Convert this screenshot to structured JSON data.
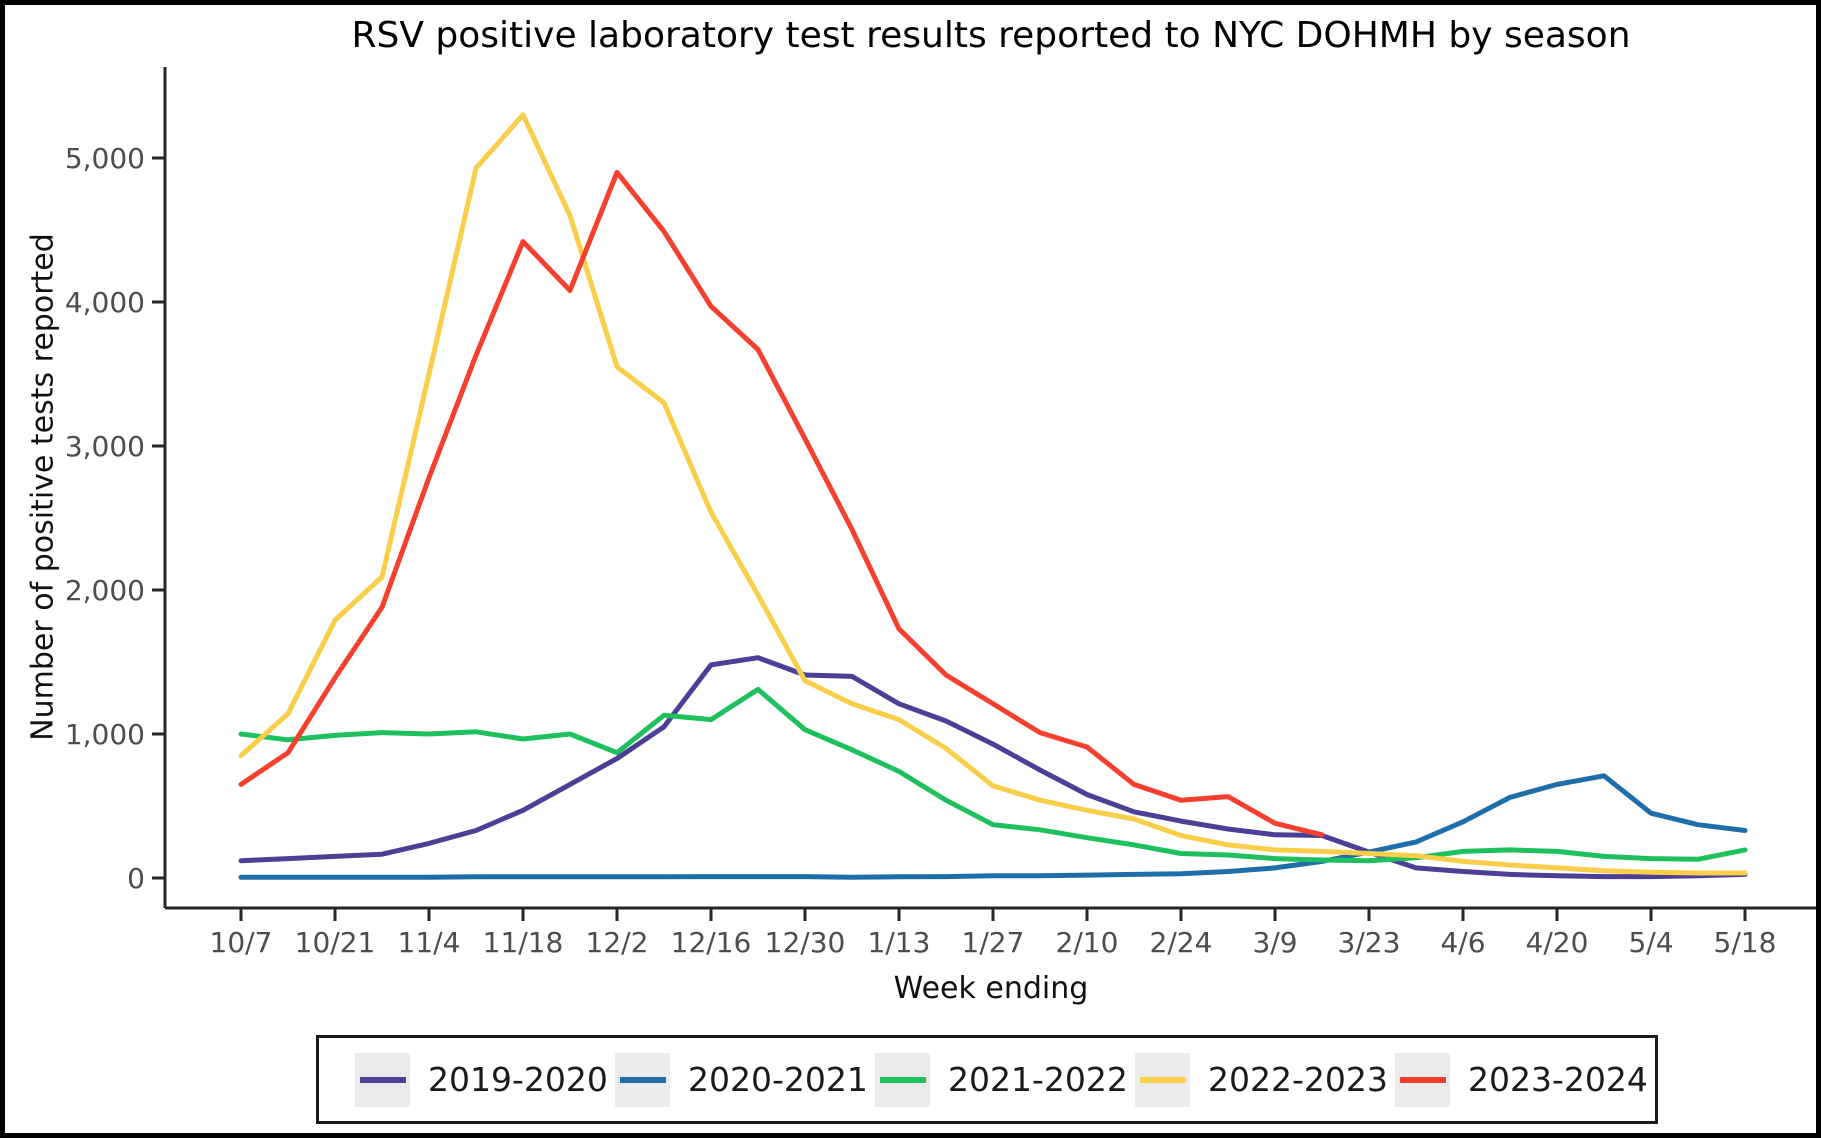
{
  "title": "RSV positive laboratory test results reported to NYC DOHMH by season",
  "chart_data": {
    "type": "line",
    "title": "RSV positive laboratory test results reported to NYC DOHMH by season",
    "xlabel": "Week ending",
    "ylabel": "Number of positive tests reported",
    "grid": false,
    "legend_position": "bottom",
    "ylim": [
      0,
      5630
    ],
    "y_ticks": {
      "values": [
        0,
        1000,
        2000,
        3000,
        4000,
        5000
      ],
      "labels": [
        "0",
        "1,000",
        "2,000",
        "3,000",
        "4,000",
        "5,000"
      ]
    },
    "x": [
      "10/7",
      "10/14",
      "10/21",
      "10/28",
      "11/4",
      "11/11",
      "11/18",
      "11/25",
      "12/2",
      "12/9",
      "12/16",
      "12/23",
      "12/30",
      "1/6",
      "1/13",
      "1/20",
      "1/27",
      "2/3",
      "2/10",
      "2/17",
      "2/24",
      "3/2",
      "3/9",
      "3/16",
      "3/23",
      "3/30",
      "4/6",
      "4/13",
      "4/20",
      "4/27",
      "5/4",
      "5/11",
      "5/18"
    ],
    "x_tick_labels": [
      "10/7",
      "10/21",
      "11/4",
      "11/18",
      "12/2",
      "12/16",
      "12/30",
      "1/13",
      "1/27",
      "2/10",
      "2/24",
      "3/9",
      "3/23",
      "4/6",
      "4/20",
      "5/4",
      "5/18"
    ],
    "x_tick_every": 2,
    "series": [
      {
        "name": "2019-2020",
        "color": "#4C3F96",
        "values": [
          120,
          135,
          150,
          165,
          240,
          330,
          470,
          650,
          830,
          1050,
          1480,
          1530,
          1410,
          1400,
          1210,
          1090,
          930,
          750,
          580,
          460,
          395,
          340,
          300,
          295,
          180,
          70,
          45,
          25,
          15,
          10,
          10,
          15,
          25
        ]
      },
      {
        "name": "2020-2021",
        "color": "#1F6EAA",
        "values": [
          5,
          5,
          5,
          5,
          5,
          8,
          8,
          8,
          8,
          8,
          10,
          10,
          10,
          5,
          8,
          10,
          15,
          15,
          20,
          25,
          30,
          45,
          70,
          115,
          180,
          250,
          390,
          560,
          650,
          710,
          450,
          370,
          330
        ]
      },
      {
        "name": "2021-2022",
        "color": "#1EC05E",
        "values": [
          1000,
          960,
          990,
          1010,
          1000,
          1015,
          965,
          1000,
          870,
          1130,
          1100,
          1310,
          1030,
          890,
          740,
          540,
          370,
          335,
          280,
          230,
          170,
          160,
          135,
          125,
          120,
          140,
          185,
          195,
          185,
          150,
          135,
          130,
          195
        ]
      },
      {
        "name": "2022-2023",
        "color": "#F8CE4B",
        "values": [
          850,
          1140,
          1790,
          2090,
          3500,
          4930,
          5300,
          4600,
          3550,
          3300,
          2540,
          1965,
          1370,
          1210,
          1100,
          900,
          640,
          540,
          470,
          410,
          295,
          230,
          195,
          185,
          170,
          155,
          115,
          90,
          70,
          50,
          40,
          35,
          35
        ]
      },
      {
        "name": "2023-2024",
        "color": "#F5402F",
        "values": [
          650,
          870,
          1390,
          1880,
          2780,
          3630,
          4420,
          4080,
          4900,
          4490,
          3970,
          3670,
          3050,
          2420,
          1730,
          1410,
          1210,
          1010,
          910,
          650,
          540,
          565,
          380,
          300
        ]
      }
    ]
  }
}
